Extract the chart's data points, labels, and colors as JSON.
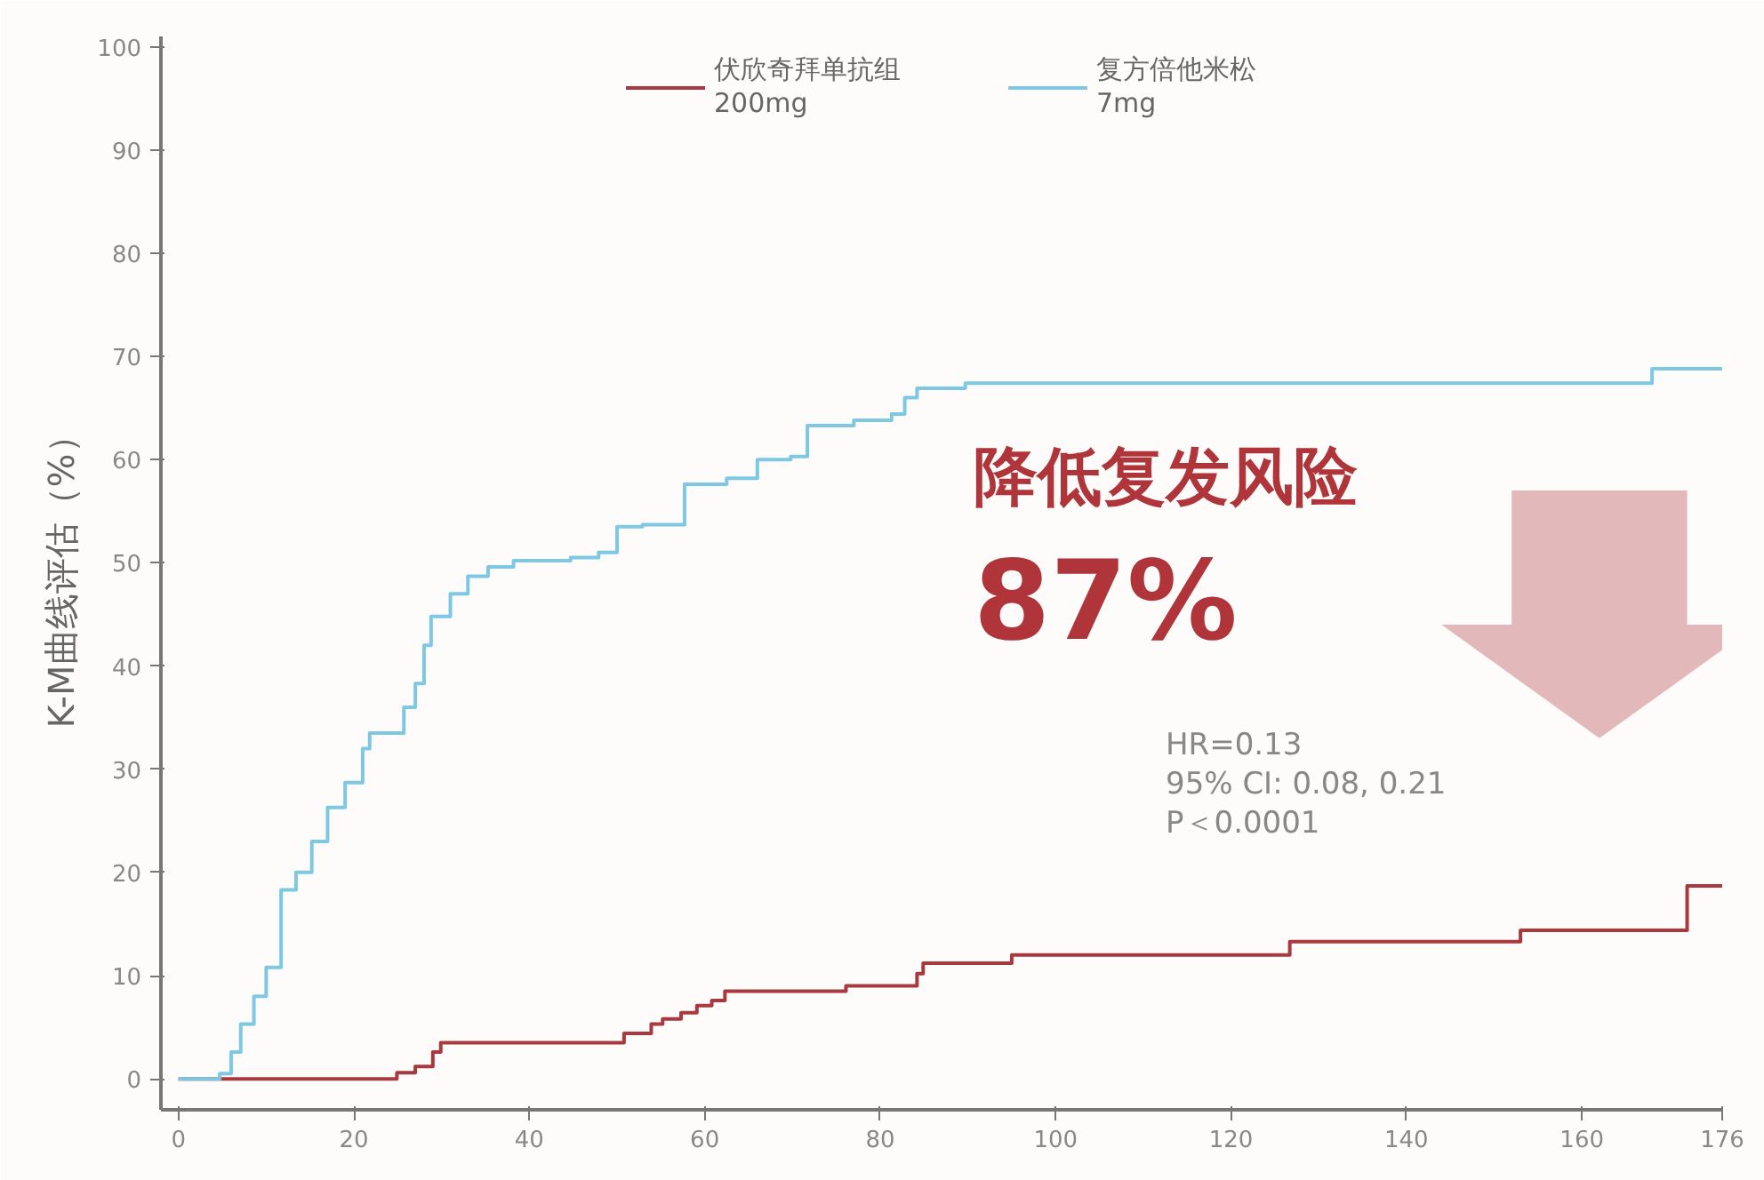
{
  "chart_data": {
    "type": "step",
    "ylabel": "K-M曲线评估（%）",
    "xlim": [
      -2,
      176
    ],
    "xticks": [
      0,
      20,
      40,
      60,
      80,
      100,
      120,
      140,
      160,
      176
    ],
    "ylim": [
      -3,
      101
    ],
    "yticks": [
      0,
      10,
      20,
      30,
      40,
      50,
      60,
      70,
      80,
      90,
      100
    ],
    "grid": false,
    "legend": "top",
    "marker": "none",
    "line_style": "solid",
    "series": [
      {
        "name": "伏欣奇拜单抗组\n200mg",
        "color": "#a83a3f",
        "x": [
          0,
          24.9,
          27,
          29,
          29.9,
          50.8,
          53.9,
          55.2,
          57.3,
          59.1,
          60.8,
          62.3,
          76.1,
          84.2,
          84.9,
          95,
          126.7,
          153,
          172,
          176
        ],
        "values": [
          0,
          0.6,
          1.2,
          2.6,
          3.5,
          4.4,
          5.3,
          5.8,
          6.4,
          7.1,
          7.6,
          8.5,
          9,
          10.2,
          11.2,
          12,
          13.3,
          14.4,
          18.7,
          18.7
        ]
      },
      {
        "name": "复方倍他米松\n7mg",
        "color": "#7ec8e3",
        "x": [
          0,
          4.7,
          6,
          7.1,
          8.6,
          10,
          11.7,
          13.4,
          15.2,
          17,
          19,
          21,
          21.8,
          25.7,
          27,
          28,
          28.8,
          31,
          33,
          35.3,
          38.2,
          44.7,
          47.9,
          50,
          52.9,
          57.7,
          62.5,
          66,
          69.8,
          71.7,
          77,
          81.3,
          82.8,
          84.2,
          89.7,
          168,
          176
        ],
        "values": [
          0,
          0.5,
          2.6,
          5.3,
          8,
          10.8,
          18.3,
          20,
          23,
          26.3,
          28.7,
          32,
          33.5,
          36,
          38.3,
          42,
          44.8,
          47,
          48.7,
          49.6,
          50.2,
          50.5,
          51,
          53.5,
          53.7,
          57.6,
          58.2,
          60,
          60.3,
          63.3,
          63.8,
          64.4,
          66,
          66.9,
          67.4,
          68.8,
          68.8
        ]
      }
    ],
    "annotations": [
      "降低复发风险",
      "87%",
      "HR=0.13",
      "95% CI: 0.08, 0.21",
      "P＜0.0001"
    ]
  }
}
